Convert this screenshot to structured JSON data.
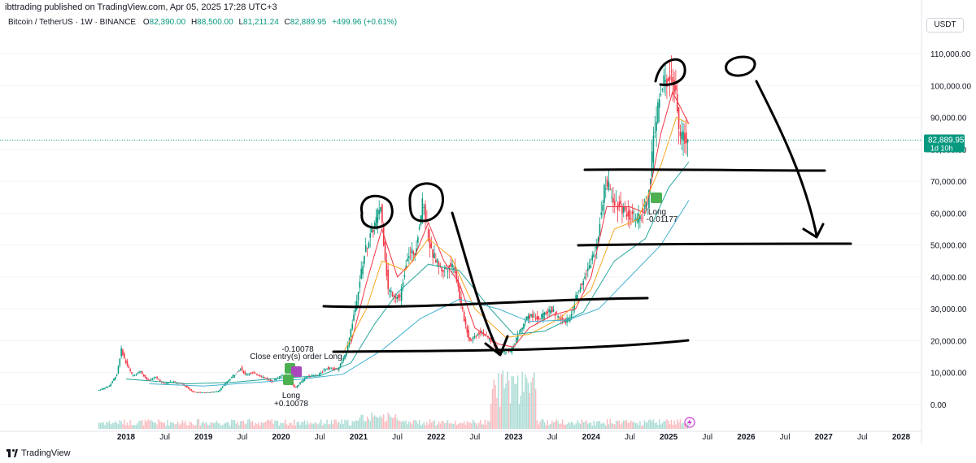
{
  "header": {
    "text": "ibttrading published on TradingView.com, Apr 05, 2025 17:28 UTC+3"
  },
  "legend": {
    "symbol": "Bitcoin / TetherUS · 1W · BINANCE",
    "o_label": "O",
    "o_value": "82,390.00",
    "h_label": "H",
    "h_value": "88,500.00",
    "l_label": "L",
    "l_value": "81,211.24",
    "c_label": "C",
    "c_value": "82,889.95",
    "change": "+499.96 (+0.61%)"
  },
  "currency": "USDT",
  "price_tag": {
    "value": "82,889.95",
    "countdown": "1d 10h"
  },
  "footer": {
    "brand": "TradingView"
  },
  "colors": {
    "up": "#089981",
    "down": "#f23645",
    "ema_fast": "#f23645",
    "ema_mid": "#f5a623",
    "ema_slow": "#26a69a",
    "ema_long": "#3fb1d1",
    "ink": "#000000"
  },
  "annotations": {
    "trade_top_value": "-0.10078",
    "trade_top_text": "Close entry(s) order Long",
    "trade_bottom_label": "Long",
    "trade_bottom_value": "+0.10078",
    "trade2_label": "Long",
    "trade2_value": "-0.01177"
  },
  "chart_data": {
    "type": "candlestick",
    "interval": "1W",
    "y_axis": {
      "min": 0,
      "max": 110000,
      "ticks": [
        "110,000.00",
        "100,000.00",
        "90,000.00",
        "80,000.00",
        "70,000.00",
        "60,000.00",
        "50,000.00",
        "40,000.00",
        "30,000.00",
        "20,000.00",
        "10,000.00",
        "0.00"
      ],
      "tick_values": [
        110000,
        100000,
        90000,
        80000,
        70000,
        60000,
        50000,
        40000,
        30000,
        20000,
        10000,
        0
      ]
    },
    "x_axis": {
      "ticks": [
        "2018",
        "Jul",
        "2019",
        "Jul",
        "2020",
        "Jul",
        "2021",
        "Jul",
        "2022",
        "Jul",
        "2023",
        "Jul",
        "2024",
        "Jul",
        "2025",
        "Jul",
        "2026",
        "Jul",
        "2027",
        "Jul",
        "2028"
      ],
      "tick_values": [
        2018,
        2018.5,
        2019,
        2019.5,
        2020,
        2020.5,
        2021,
        2021.5,
        2022,
        2022.5,
        2023,
        2023.5,
        2024,
        2024.5,
        2025,
        2025.5,
        2026,
        2026.5,
        2027,
        2027.5,
        2028
      ]
    },
    "last_price": 82889.95,
    "price_path": [
      [
        2017.65,
        4300
      ],
      [
        2017.8,
        5800
      ],
      [
        2017.9,
        9500
      ],
      [
        2017.96,
        17500
      ],
      [
        2018.0,
        14000
      ],
      [
        2018.1,
        9000
      ],
      [
        2018.2,
        10500
      ],
      [
        2018.3,
        7500
      ],
      [
        2018.4,
        8500
      ],
      [
        2018.5,
        6500
      ],
      [
        2018.6,
        7200
      ],
      [
        2018.75,
        6400
      ],
      [
        2018.88,
        4000
      ],
      [
        2019.0,
        3700
      ],
      [
        2019.2,
        4000
      ],
      [
        2019.35,
        7800
      ],
      [
        2019.5,
        11500
      ],
      [
        2019.55,
        9500
      ],
      [
        2019.65,
        10000
      ],
      [
        2019.8,
        8500
      ],
      [
        2019.9,
        7200
      ],
      [
        2020.05,
        9500
      ],
      [
        2020.2,
        5200
      ],
      [
        2020.35,
        8800
      ],
      [
        2020.5,
        9200
      ],
      [
        2020.6,
        11500
      ],
      [
        2020.75,
        11000
      ],
      [
        2020.85,
        15500
      ],
      [
        2020.95,
        27000
      ],
      [
        2021.1,
        48000
      ],
      [
        2021.25,
        58000
      ],
      [
        2021.3,
        63000
      ],
      [
        2021.4,
        36000
      ],
      [
        2021.55,
        33000
      ],
      [
        2021.65,
        47000
      ],
      [
        2021.75,
        48000
      ],
      [
        2021.85,
        64000
      ],
      [
        2021.95,
        48000
      ],
      [
        2022.1,
        42000
      ],
      [
        2022.25,
        44000
      ],
      [
        2022.35,
        30000
      ],
      [
        2022.45,
        20000
      ],
      [
        2022.6,
        23000
      ],
      [
        2022.75,
        19500
      ],
      [
        2022.85,
        16500
      ],
      [
        2022.98,
        16600
      ],
      [
        2023.1,
        23000
      ],
      [
        2023.2,
        28000
      ],
      [
        2023.35,
        27000
      ],
      [
        2023.5,
        30000
      ],
      [
        2023.65,
        26000
      ],
      [
        2023.75,
        27000
      ],
      [
        2023.85,
        36000
      ],
      [
        2024.0,
        43000
      ],
      [
        2024.1,
        52000
      ],
      [
        2024.2,
        70000
      ],
      [
        2024.35,
        63000
      ],
      [
        2024.5,
        60000
      ],
      [
        2024.6,
        57000
      ],
      [
        2024.75,
        63000
      ],
      [
        2024.85,
        90000
      ],
      [
        2024.95,
        100000
      ],
      [
        2025.05,
        105000
      ],
      [
        2025.1,
        98000
      ],
      [
        2025.17,
        84000
      ],
      [
        2025.26,
        82890
      ]
    ],
    "ema_lines": [
      {
        "name_color": "ema_fast",
        "points": [
          [
            2020.9,
            19000
          ],
          [
            2021.1,
            38000
          ],
          [
            2021.3,
            55000
          ],
          [
            2021.5,
            40000
          ],
          [
            2021.7,
            45000
          ],
          [
            2021.9,
            57000
          ],
          [
            2022.1,
            45000
          ],
          [
            2022.3,
            38000
          ],
          [
            2022.5,
            24000
          ],
          [
            2022.8,
            19000
          ],
          [
            2023.0,
            18000
          ],
          [
            2023.2,
            24000
          ],
          [
            2023.5,
            28000
          ],
          [
            2023.8,
            30000
          ],
          [
            2024.0,
            40000
          ],
          [
            2024.2,
            62000
          ],
          [
            2024.5,
            62000
          ],
          [
            2024.7,
            60000
          ],
          [
            2024.9,
            85000
          ],
          [
            2025.05,
            98000
          ],
          [
            2025.26,
            88000
          ]
        ]
      },
      {
        "name_color": "ema_mid",
        "points": [
          [
            2020.8,
            16000
          ],
          [
            2021.1,
            30000
          ],
          [
            2021.3,
            45000
          ],
          [
            2021.6,
            42000
          ],
          [
            2021.9,
            52000
          ],
          [
            2022.2,
            46000
          ],
          [
            2022.5,
            30000
          ],
          [
            2022.9,
            21000
          ],
          [
            2023.2,
            22000
          ],
          [
            2023.6,
            27000
          ],
          [
            2024.0,
            36000
          ],
          [
            2024.3,
            55000
          ],
          [
            2024.6,
            58000
          ],
          [
            2024.9,
            75000
          ],
          [
            2025.1,
            90000
          ],
          [
            2025.26,
            88000
          ]
        ]
      },
      {
        "name_color": "ema_slow",
        "points": [
          [
            2018.0,
            8000
          ],
          [
            2018.8,
            6500
          ],
          [
            2019.4,
            7000
          ],
          [
            2020.0,
            8300
          ],
          [
            2020.5,
            9000
          ],
          [
            2020.9,
            13000
          ],
          [
            2021.2,
            25000
          ],
          [
            2021.5,
            35000
          ],
          [
            2021.9,
            44000
          ],
          [
            2022.3,
            42000
          ],
          [
            2022.7,
            30000
          ],
          [
            2023.0,
            22000
          ],
          [
            2023.4,
            23000
          ],
          [
            2023.9,
            29000
          ],
          [
            2024.3,
            45000
          ],
          [
            2024.7,
            52000
          ],
          [
            2025.0,
            68000
          ],
          [
            2025.26,
            76000
          ]
        ]
      },
      {
        "name_color": "ema_long",
        "points": [
          [
            2018.3,
            6500
          ],
          [
            2019.0,
            5800
          ],
          [
            2019.6,
            6800
          ],
          [
            2020.2,
            7800
          ],
          [
            2020.8,
            9500
          ],
          [
            2021.3,
            17000
          ],
          [
            2021.8,
            27000
          ],
          [
            2022.3,
            33000
          ],
          [
            2022.8,
            30000
          ],
          [
            2023.2,
            26000
          ],
          [
            2023.7,
            26500
          ],
          [
            2024.1,
            30000
          ],
          [
            2024.5,
            40000
          ],
          [
            2024.9,
            50000
          ],
          [
            2025.26,
            64000
          ]
        ]
      }
    ],
    "volume_profile": "decorative volume histogram along bottom edge"
  }
}
